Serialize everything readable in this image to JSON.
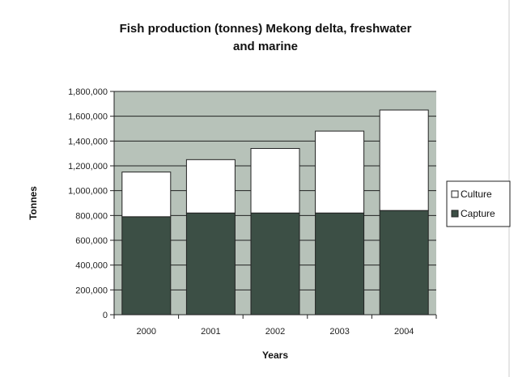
{
  "chart_data": {
    "type": "bar",
    "stacked": true,
    "title": "Fish production (tonnes) Mekong delta, freshwater and marine",
    "title_lines": [
      "Fish production (tonnes) Mekong delta, freshwater",
      "and marine"
    ],
    "xlabel": "Years",
    "ylabel": "Tonnes",
    "categories": [
      "2000",
      "2001",
      "2002",
      "2003",
      "2004"
    ],
    "series": [
      {
        "name": "Capture",
        "values": [
          790000,
          820000,
          820000,
          820000,
          840000
        ],
        "color": "#3c4f45"
      },
      {
        "name": "Culture",
        "values": [
          360000,
          430000,
          520000,
          660000,
          810000
        ],
        "color": "#ffffff"
      }
    ],
    "legend_order": [
      "Culture",
      "Capture"
    ],
    "legend_position": "right",
    "ylim": [
      0,
      1800000
    ],
    "yticks": [
      0,
      200000,
      400000,
      600000,
      800000,
      1000000,
      1200000,
      1400000,
      1600000,
      1800000
    ],
    "ytick_labels": [
      "0",
      "200,000",
      "400,000",
      "600,000",
      "800,000",
      "1,000,000",
      "1,200,000",
      "1,400,000",
      "1,600,000",
      "1,800,000"
    ],
    "grid": true,
    "plot_background": "#b7c2b9"
  }
}
